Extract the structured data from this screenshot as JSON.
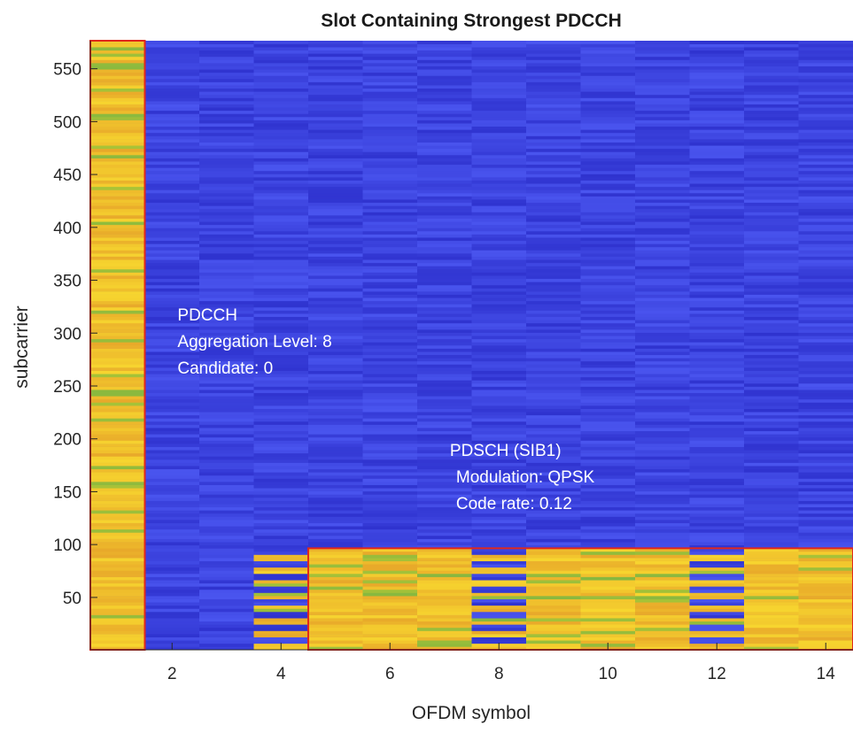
{
  "chart_data": {
    "type": "heatmap",
    "title": "Slot Containing Strongest PDCCH",
    "xlabel": "OFDM symbol",
    "ylabel": "subcarrier",
    "xlim": [
      0.5,
      14.5
    ],
    "ylim": [
      0.5,
      576.5
    ],
    "n_symbols": 14,
    "n_subcarriers": 576,
    "xticks": [
      2,
      4,
      6,
      8,
      10,
      12,
      14
    ],
    "yticks": [
      50,
      100,
      150,
      200,
      250,
      300,
      350,
      400,
      450,
      500,
      550
    ],
    "colors": {
      "low": "#3a3fe0",
      "high": "#f2c22a",
      "mid": "#9fbf3b",
      "box": "#e0281c",
      "annotation_text": "#ffffff"
    },
    "regions": [
      {
        "name": "PDCCH (CORESET)",
        "symbols": [
          1,
          1
        ],
        "subcarriers": [
          1,
          576
        ],
        "level": "high"
      },
      {
        "name": "PDSCH (SIB1)",
        "symbols": [
          5,
          14
        ],
        "subcarriers": [
          1,
          96
        ],
        "level": "high",
        "dmrs_symbols": [
          4,
          8,
          12
        ],
        "dmrs_pattern": "alternating"
      }
    ],
    "annotations": [
      {
        "lines": [
          "PDCCH",
          "Aggregation Level: 8",
          "Candidate: 0"
        ],
        "x": 2.1,
        "y": 312
      },
      {
        "lines": [
          "PDSCH (SIB1)",
          "Modulation: QPSK",
          "Code rate: 0.12"
        ],
        "x": 7.1,
        "y": 184
      }
    ]
  }
}
